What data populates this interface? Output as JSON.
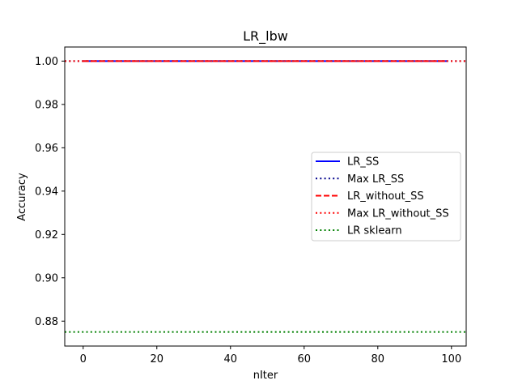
{
  "chart_data": {
    "type": "line",
    "title": "LR_lbw",
    "xlabel": "nIter",
    "ylabel": "Accuracy",
    "xlim": [
      -5,
      104
    ],
    "ylim": [
      0.8685,
      1.0065
    ],
    "xticks": [
      0,
      20,
      40,
      60,
      80,
      100
    ],
    "xtick_labels": [
      "0",
      "20",
      "40",
      "60",
      "80",
      "100"
    ],
    "yticks": [
      0.88,
      0.9,
      0.92,
      0.94,
      0.96,
      0.98,
      1.0
    ],
    "ytick_labels": [
      "0.88",
      "0.90",
      "0.92",
      "0.94",
      "0.96",
      "0.98",
      "1.00"
    ],
    "grid": false,
    "legend_position": "center-right",
    "series": [
      {
        "name": "LR_SS",
        "kind": "line",
        "x": [
          0,
          99
        ],
        "y": [
          1.0,
          1.0
        ],
        "color": "#0000ff",
        "style": "solid"
      },
      {
        "name": "Max LR_SS",
        "kind": "hline",
        "y": 1.0,
        "color": "#00008b",
        "style": "dotted"
      },
      {
        "name": "LR_without_SS",
        "kind": "line",
        "x": [
          0,
          99
        ],
        "y": [
          1.0,
          1.0
        ],
        "color": "#ff0000",
        "style": "dashed"
      },
      {
        "name": "Max LR_without_SS",
        "kind": "hline",
        "y": 1.0,
        "color": "#ff0000",
        "style": "dotted"
      },
      {
        "name": "LR sklearn",
        "kind": "hline",
        "y": 0.875,
        "color": "#008000",
        "style": "dotted"
      }
    ]
  }
}
